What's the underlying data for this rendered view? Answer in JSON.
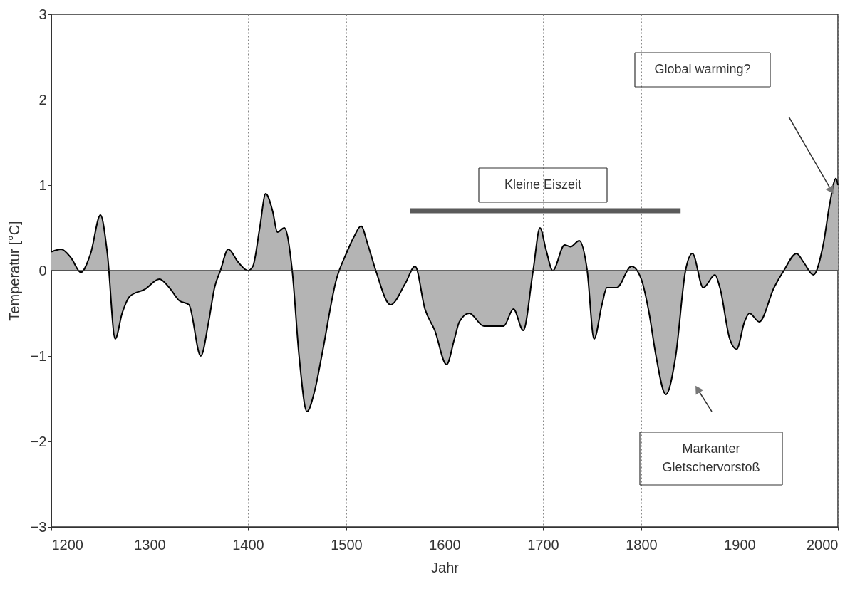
{
  "chart_data": {
    "type": "area",
    "xlabel": "Jahr",
    "ylabel": "Temperatur [°C]",
    "xlim": [
      1200,
      2000
    ],
    "xticks": [
      1200,
      1300,
      1400,
      1500,
      1600,
      1700,
      1800,
      1900,
      2000
    ],
    "ylim": [
      -3,
      3
    ],
    "yticks": [
      -3,
      -2,
      -1,
      0,
      1,
      2,
      3
    ],
    "grid": "x",
    "series": [
      {
        "type": "area",
        "color": "#b4b4b4",
        "x": [
          1200,
          1210,
          1220,
          1230,
          1240,
          1250,
          1257,
          1265,
          1272,
          1280,
          1295,
          1310,
          1320,
          1330,
          1340,
          1352,
          1360,
          1366,
          1372,
          1380,
          1390,
          1400,
          1405,
          1412,
          1418,
          1425,
          1430,
          1437,
          1445,
          1452,
          1460,
          1468,
          1475,
          1490,
          1500,
          1508,
          1515,
          1522,
          1530,
          1545,
          1560,
          1570,
          1580,
          1590,
          1602,
          1610,
          1615,
          1625,
          1640,
          1660,
          1670,
          1680,
          1690,
          1697,
          1703,
          1710,
          1722,
          1728,
          1737,
          1745,
          1752,
          1760,
          1765,
          1775,
          1790,
          1800,
          1808,
          1815,
          1825,
          1835,
          1845,
          1852,
          1863,
          1875,
          1880,
          1890,
          1897,
          1905,
          1910,
          1920,
          1935,
          1945,
          1958,
          1965,
          1975,
          1985,
          1992,
          1998,
          2000
        ],
        "values": [
          0.22,
          0.25,
          0.15,
          -0.02,
          0.2,
          0.65,
          0.2,
          -0.8,
          -0.5,
          -0.3,
          -0.22,
          -0.1,
          -0.2,
          -0.35,
          -0.4,
          -1.0,
          -0.6,
          -0.2,
          0.0,
          0.25,
          0.1,
          0.0,
          0.05,
          0.5,
          0.9,
          0.7,
          0.45,
          0.5,
          0.0,
          -1.0,
          -1.65,
          -1.4,
          -1.0,
          -0.1,
          0.2,
          0.4,
          0.52,
          0.3,
          0.0,
          -0.4,
          -0.15,
          0.05,
          -0.45,
          -0.7,
          -1.1,
          -0.8,
          -0.6,
          -0.5,
          -0.65,
          -0.65,
          -0.45,
          -0.7,
          0.0,
          0.5,
          0.25,
          0.0,
          0.3,
          0.28,
          0.35,
          0.0,
          -0.8,
          -0.4,
          -0.2,
          -0.2,
          0.05,
          -0.1,
          -0.5,
          -1.0,
          -1.45,
          -1.0,
          0.0,
          0.2,
          -0.2,
          -0.05,
          -0.2,
          -0.8,
          -0.92,
          -0.6,
          -0.5,
          -0.6,
          -0.2,
          0.0,
          0.2,
          0.1,
          -0.05,
          0.3,
          0.8,
          1.08,
          1.0
        ]
      },
      {
        "type": "line",
        "color": "#5a5a5a",
        "x": [
          1565,
          1840
        ],
        "values": [
          0.7,
          0.7
        ]
      }
    ],
    "annotations": [
      "Kleine Eiszeit",
      "Global warming?",
      "Markanter\nGletschervorstoß"
    ]
  }
}
